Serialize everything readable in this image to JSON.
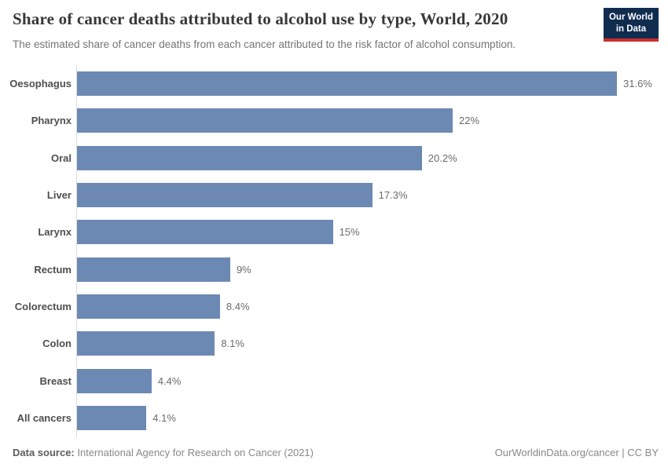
{
  "header": {
    "title": "Share of cancer deaths attributed to alcohol use by type, World, 2020",
    "subtitle": "The estimated share of cancer deaths from each cancer attributed to the risk factor of alcohol consumption."
  },
  "logo": {
    "line1": "Our World",
    "line2": "in Data",
    "bg_color": "#102d50",
    "accent_color": "#c8302c"
  },
  "footer": {
    "source_label": "Data source:",
    "source_text": "International Agency for Research on Cancer (2021)",
    "credit": "OurWorldinData.org/cancer | CC BY"
  },
  "chart_data": {
    "type": "bar",
    "orientation": "horizontal",
    "title": "Share of cancer deaths attributed to alcohol use by type, World, 2020",
    "subtitle": "The estimated share of cancer deaths from each cancer attributed to the risk factor of alcohol consumption.",
    "categories": [
      "Oesophagus",
      "Pharynx",
      "Oral",
      "Liver",
      "Larynx",
      "Rectum",
      "Colorectum",
      "Colon",
      "Breast",
      "All cancers"
    ],
    "values": [
      31.6,
      22,
      20.2,
      17.3,
      15,
      9,
      8.4,
      8.1,
      4.4,
      4.1
    ],
    "value_labels": [
      "31.6%",
      "22%",
      "20.2%",
      "17.3%",
      "15%",
      "9%",
      "8.4%",
      "8.1%",
      "4.4%",
      "4.1%"
    ],
    "xlabel": "",
    "ylabel": "",
    "xlim": [
      0,
      31.6
    ],
    "grid": false,
    "legend": "none",
    "bar_color": "#6c89b3",
    "axis_line_color": "#dcdcdc"
  }
}
